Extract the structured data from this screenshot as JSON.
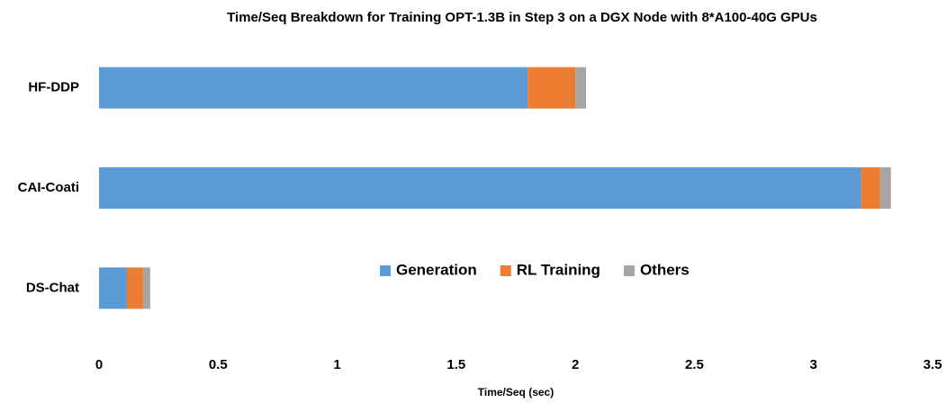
{
  "chart_data": {
    "type": "stacked-barh",
    "title": "Time/Seq Breakdown for Training OPT-1.3B in Step 3 on a DGX Node with 8*A100-40G GPUs",
    "xlabel": "Time/Seq (sec)",
    "categories": [
      "HF-DDP",
      "CAI-Coati",
      "DS-Chat"
    ],
    "series": [
      {
        "name": "Generation",
        "color": "#5b9bd5",
        "values": [
          1.8,
          3.2,
          0.117
        ]
      },
      {
        "name": "RL Training",
        "color": "#ed7d31",
        "values": [
          0.2,
          0.08,
          0.068
        ]
      },
      {
        "name": "Others",
        "color": "#a5a5a5",
        "values": [
          0.045,
          0.045,
          0.03
        ]
      }
    ],
    "xlim": [
      0,
      3.5
    ],
    "xticks": [
      0,
      0.5,
      1,
      1.5,
      2,
      2.5,
      3,
      3.5
    ]
  }
}
